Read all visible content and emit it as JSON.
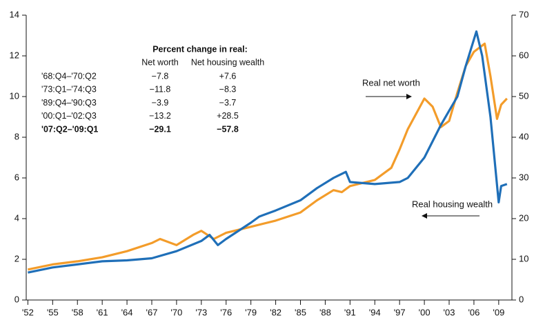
{
  "chart_data": {
    "type": "line",
    "xlim": [
      1951.8,
      2010.6
    ],
    "xticks": [
      {
        "value": 1952,
        "label": "'52"
      },
      {
        "value": 1955,
        "label": "'55"
      },
      {
        "value": 1958,
        "label": "'58"
      },
      {
        "value": 1961,
        "label": "'61"
      },
      {
        "value": 1964,
        "label": "'64"
      },
      {
        "value": 1967,
        "label": "'67"
      },
      {
        "value": 1970,
        "label": "'70"
      },
      {
        "value": 1973,
        "label": "'73"
      },
      {
        "value": 1976,
        "label": "'76"
      },
      {
        "value": 1979,
        "label": "'79"
      },
      {
        "value": 1982,
        "label": "'82"
      },
      {
        "value": 1985,
        "label": "'85"
      },
      {
        "value": 1988,
        "label": "'88"
      },
      {
        "value": 1991,
        "label": "'91"
      },
      {
        "value": 1994,
        "label": "'94"
      },
      {
        "value": 1997,
        "label": "'97"
      },
      {
        "value": 2000,
        "label": "'00"
      },
      {
        "value": 2003,
        "label": "'03"
      },
      {
        "value": 2006,
        "label": "'06"
      },
      {
        "value": 2009,
        "label": "'09"
      }
    ],
    "ylim": [
      0,
      14
    ],
    "yticks": [
      0,
      2,
      4,
      6,
      8,
      10,
      12,
      14
    ],
    "y2lim": [
      0,
      70
    ],
    "y2ticks": [
      0,
      10,
      20,
      30,
      40,
      50,
      60,
      70
    ],
    "grid": false,
    "series": [
      {
        "name": "Real housing wealth",
        "color": "#1f6fb8",
        "axis": "y",
        "x": [
          1952,
          1955,
          1958,
          1961,
          1964,
          1967,
          1970,
          1973,
          1974,
          1975,
          1976,
          1979,
          1980,
          1982,
          1985,
          1987,
          1989,
          1990.5,
          1991,
          1994,
          1997,
          1998,
          2000,
          2002,
          2003,
          2004,
          2005,
          2006.3,
          2007,
          2008,
          2009,
          2009.3,
          2010
        ],
        "values": [
          1.35,
          1.6,
          1.75,
          1.9,
          1.95,
          2.05,
          2.4,
          2.9,
          3.2,
          2.7,
          3.0,
          3.8,
          4.1,
          4.4,
          4.9,
          5.5,
          6.0,
          6.3,
          5.8,
          5.7,
          5.8,
          6.0,
          7.0,
          8.6,
          9.3,
          10.0,
          11.5,
          13.2,
          12.0,
          9.0,
          4.8,
          5.6,
          5.7
        ]
      },
      {
        "name": "Real net worth",
        "color": "#f39c2a",
        "axis": "y2",
        "x": [
          1952,
          1955,
          1958,
          1961,
          1964,
          1967,
          1968,
          1970,
          1972,
          1973,
          1974.5,
          1976,
          1979,
          1982,
          1985,
          1987,
          1989,
          1990,
          1991,
          1994,
          1996,
          1997,
          1998,
          2000,
          2001,
          2002,
          2003,
          2004,
          2005,
          2006,
          2007.3,
          2008,
          2008.8,
          2009.3,
          2010
        ],
        "values": [
          7.5,
          8.75,
          9.5,
          10.5,
          12,
          14,
          15,
          13.5,
          16,
          17,
          15,
          16.5,
          18,
          19.5,
          21.5,
          24.5,
          27,
          26.5,
          28,
          29.5,
          32.5,
          37,
          42,
          49.5,
          47.5,
          42.5,
          44,
          51,
          57.5,
          61,
          63,
          55,
          44.5,
          48,
          49.5
        ]
      }
    ],
    "table": {
      "title": "Percent change in real:",
      "columns": [
        "Net worth",
        "Net housing wealth"
      ],
      "rows": [
        [
          "'68:Q4–'70:Q2",
          "−7.8",
          "+7.6"
        ],
        [
          "'73:Q1–'74:Q3",
          "−11.8",
          "−8.3"
        ],
        [
          "'89:Q4–'90:Q3",
          "−3.9",
          "−3.7"
        ],
        [
          "'00:Q1–'02:Q3",
          "−13.2",
          "+28.5"
        ],
        [
          "'07:Q2–'09:Q1",
          "−29.1",
          "−57.8"
        ]
      ]
    }
  }
}
